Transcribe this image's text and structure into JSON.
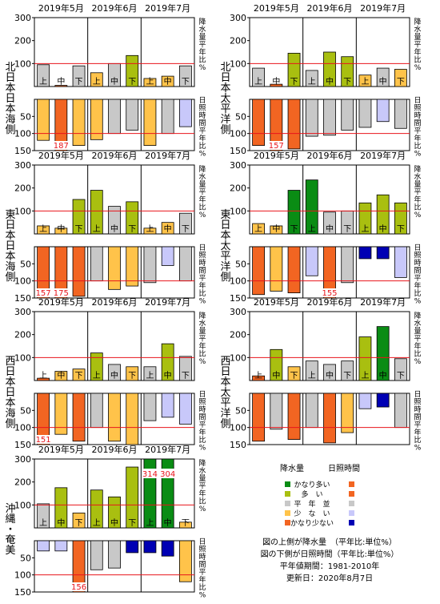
{
  "legend": {
    "precip_title": "降水量",
    "sun_title": "日照時間",
    "categories": [
      {
        "label": "かなり多い",
        "precip_color": "#0a8c14",
        "sun_color": "#f26522"
      },
      {
        "label": "多　い",
        "precip_color": "#a9bf10",
        "sun_color": "#f26522"
      },
      {
        "label": "平　年　並",
        "precip_color": "#c8c8c8",
        "sun_color": "#c8c8c8"
      },
      {
        "label": "少　な　い",
        "precip_color": "#ffc34a",
        "sun_color": "#c8c8fa"
      },
      {
        "label": "かなり少ない",
        "precip_color": "#f26522",
        "sun_color": "#0000b4"
      }
    ]
  },
  "notes": {
    "line1": "図の上側が降水量　（平年比:単位%）",
    "line2": "図の下側が日照時間（平年比:単位%）",
    "line3": "平年値期間：1981-2010年",
    "line4": "更新日：2020年8月7日"
  },
  "chart_data": [
    {
      "type": "bar",
      "region": "北日本日本海側",
      "months": [
        "2019年5月",
        "2019年6月",
        "2019年7月"
      ],
      "categories": [
        "上",
        "中",
        "下",
        "上",
        "中",
        "下",
        "上",
        "中",
        "下"
      ],
      "precip_ylabel": "降水量平年比%",
      "sun_ylabel": "日照時間平年比%",
      "precip_yticks": [
        100,
        200,
        300
      ],
      "sun_yticks": [
        50,
        100,
        150
      ],
      "precip_ylim": [
        0,
        300
      ],
      "sun_ylim": [
        0,
        150
      ],
      "precipitation": {
        "values": [
          95,
          5,
          90,
          60,
          100,
          135,
          35,
          45,
          90
        ],
        "colors": [
          "#c8c8c8",
          "#f26522",
          "#c8c8c8",
          "#ffc34a",
          "#c8c8c8",
          "#a9bf10",
          "#ffc34a",
          "#ffc34a",
          "#c8c8c8"
        ]
      },
      "sunshine": {
        "values": [
          120,
          187,
          135,
          118,
          100,
          90,
          135,
          100,
          80
        ],
        "colors": [
          "#ffc34a",
          "#f26522",
          "#ffc34a",
          "#ffc34a",
          "#c8c8c8",
          "#c8c8c8",
          "#ffc34a",
          "#c8c8c8",
          "#c8c8fa"
        ],
        "labels": [
          "",
          "187",
          "",
          "",
          "",
          "",
          "",
          "",
          ""
        ]
      }
    },
    {
      "type": "bar",
      "region": "北日本太平洋側",
      "months": [
        "2019年5月",
        "2019年6月",
        "2019年7月"
      ],
      "categories": [
        "上",
        "中",
        "下",
        "上",
        "中",
        "下",
        "上",
        "中",
        "下"
      ],
      "precip_ylabel": "降水量平年比%",
      "sun_ylabel": "日照時間平年比%",
      "precip_yticks": [
        100,
        200,
        300
      ],
      "sun_yticks": [
        50,
        100,
        150
      ],
      "precip_ylim": [
        0,
        300
      ],
      "sun_ylim": [
        0,
        150
      ],
      "precipitation": {
        "values": [
          80,
          10,
          145,
          70,
          150,
          130,
          50,
          80,
          75
        ],
        "colors": [
          "#c8c8c8",
          "#f26522",
          "#a9bf10",
          "#c8c8c8",
          "#a9bf10",
          "#a9bf10",
          "#ffc34a",
          "#c8c8c8",
          "#ffc34a"
        ]
      },
      "sunshine": {
        "values": [
          135,
          157,
          145,
          108,
          105,
          90,
          82,
          65,
          85
        ],
        "colors": [
          "#f26522",
          "#f26522",
          "#f26522",
          "#c8c8c8",
          "#c8c8c8",
          "#c8c8c8",
          "#c8c8c8",
          "#c8c8fa",
          "#c8c8c8"
        ],
        "labels": [
          "",
          "157",
          "",
          "",
          "",
          "",
          "",
          "",
          ""
        ]
      }
    },
    {
      "type": "bar",
      "region": "東日本日本海側",
      "months": [
        "2019年5月",
        "2019年6月",
        "2019年7月"
      ],
      "categories": [
        "上",
        "中",
        "下",
        "上",
        "中",
        "下",
        "上",
        "中",
        "下"
      ],
      "precip_ylabel": "降水量平年比%",
      "sun_ylabel": "日照時間平年比%",
      "precip_yticks": [
        100,
        200,
        300
      ],
      "sun_yticks": [
        50,
        100,
        150
      ],
      "precip_ylim": [
        0,
        300
      ],
      "sun_ylim": [
        0,
        150
      ],
      "precipitation": {
        "values": [
          35,
          25,
          150,
          190,
          120,
          140,
          25,
          50,
          90
        ],
        "colors": [
          "#ffc34a",
          "#ffc34a",
          "#a9bf10",
          "#a9bf10",
          "#c8c8c8",
          "#a9bf10",
          "#ffc34a",
          "#ffc34a",
          "#c8c8c8"
        ]
      },
      "sunshine": {
        "values": [
          157,
          175,
          145,
          100,
          125,
          115,
          105,
          55,
          100
        ],
        "colors": [
          "#f26522",
          "#f26522",
          "#f26522",
          "#c8c8c8",
          "#ffc34a",
          "#ffc34a",
          "#c8c8c8",
          "#c8c8fa",
          "#c8c8c8"
        ],
        "labels": [
          "157",
          "175",
          "",
          "",
          "",
          "",
          "",
          "",
          ""
        ]
      }
    },
    {
      "type": "bar",
      "region": "東日本太平洋側",
      "months": [
        "2019年5月",
        "2019年6月",
        "2019年7月"
      ],
      "categories": [
        "上",
        "中",
        "下",
        "上",
        "中",
        "下",
        "上",
        "中",
        "下"
      ],
      "precip_ylabel": "降水量平年比%",
      "sun_ylabel": "日照時間平年比%",
      "precip_yticks": [
        100,
        200,
        300
      ],
      "sun_yticks": [
        50,
        100,
        150
      ],
      "precip_ylim": [
        0,
        300
      ],
      "sun_ylim": [
        0,
        150
      ],
      "precipitation": {
        "values": [
          45,
          35,
          190,
          235,
          95,
          100,
          135,
          170,
          135
        ],
        "colors": [
          "#ffc34a",
          "#ffc34a",
          "#0a8c14",
          "#0a8c14",
          "#c8c8c8",
          "#c8c8c8",
          "#a9bf10",
          "#a9bf10",
          "#a9bf10"
        ]
      },
      "sunshine": {
        "values": [
          140,
          130,
          135,
          85,
          155,
          105,
          35,
          35,
          90
        ],
        "colors": [
          "#f26522",
          "#ffc34a",
          "#f26522",
          "#c8c8fa",
          "#f26522",
          "#c8c8c8",
          "#0000b4",
          "#0000b4",
          "#c8c8fa"
        ],
        "labels": [
          "",
          "",
          "",
          "",
          "155",
          "",
          "",
          "",
          ""
        ]
      }
    },
    {
      "type": "bar",
      "region": "西日本日本海側",
      "months": [
        "2019年5月",
        "2019年6月",
        "2019年7月"
      ],
      "categories": [
        "上",
        "中",
        "下",
        "上",
        "中",
        "下",
        "上",
        "中",
        "下"
      ],
      "precip_ylabel": "降水量平年比%",
      "sun_ylabel": "日照時間平年比%",
      "precip_yticks": [
        100,
        200,
        300
      ],
      "sun_yticks": [
        50,
        100,
        150
      ],
      "precip_ylim": [
        0,
        300
      ],
      "sun_ylim": [
        0,
        150
      ],
      "precipitation": {
        "values": [
          10,
          40,
          50,
          120,
          70,
          60,
          60,
          160,
          105
        ],
        "colors": [
          "#f26522",
          "#ffc34a",
          "#ffc34a",
          "#a9bf10",
          "#c8c8c8",
          "#ffc34a",
          "#c8c8c8",
          "#a9bf10",
          "#c8c8c8"
        ]
      },
      "sunshine": {
        "values": [
          151,
          120,
          140,
          100,
          140,
          150,
          80,
          70,
          90
        ],
        "colors": [
          "#f26522",
          "#ffc34a",
          "#f26522",
          "#c8c8c8",
          "#ffc34a",
          "#ffc34a",
          "#c8c8c8",
          "#c8c8fa",
          "#c8c8fa"
        ],
        "labels": [
          "151",
          "",
          "",
          "",
          "",
          "",
          "",
          "",
          ""
        ]
      }
    },
    {
      "type": "bar",
      "region": "西日本太平洋側",
      "months": [
        "2019年5月",
        "2019年6月",
        "2019年7月"
      ],
      "categories": [
        "上",
        "中",
        "下",
        "上",
        "中",
        "下",
        "上",
        "中",
        "下"
      ],
      "precip_ylabel": "降水量平年比%",
      "sun_ylabel": "日照時間平年比%",
      "precip_yticks": [
        100,
        200,
        300
      ],
      "sun_yticks": [
        50,
        100,
        150
      ],
      "precip_ylim": [
        0,
        300
      ],
      "sun_ylim": [
        0,
        150
      ],
      "precipitation": {
        "values": [
          20,
          135,
          60,
          85,
          70,
          85,
          190,
          235,
          95
        ],
        "colors": [
          "#f26522",
          "#a9bf10",
          "#ffc34a",
          "#c8c8c8",
          "#c8c8c8",
          "#c8c8c8",
          "#a9bf10",
          "#0a8c14",
          "#c8c8c8"
        ]
      },
      "sunshine": {
        "values": [
          140,
          105,
          135,
          100,
          145,
          115,
          45,
          40,
          100
        ],
        "colors": [
          "#f26522",
          "#c8c8c8",
          "#f26522",
          "#c8c8c8",
          "#f26522",
          "#ffc34a",
          "#c8c8fa",
          "#0000b4",
          "#c8c8c8"
        ],
        "labels": [
          "",
          "",
          "",
          "",
          "",
          "",
          "",
          "",
          ""
        ]
      }
    },
    {
      "type": "bar",
      "region": "沖縄・奄美",
      "months": [
        "2019年5月",
        "2019年6月",
        "2019年7月"
      ],
      "categories": [
        "上",
        "中",
        "下",
        "上",
        "中",
        "下",
        "上",
        "中",
        "下"
      ],
      "precip_ylabel": "降水量平年比%",
      "sun_ylabel": "日照時間平年比%",
      "precip_yticks": [
        100,
        200,
        300
      ],
      "sun_yticks": [
        50,
        100,
        150
      ],
      "precip_ylim": [
        0,
        300
      ],
      "sun_ylim": [
        0,
        150
      ],
      "precipitation": {
        "values": [
          105,
          175,
          65,
          165,
          135,
          265,
          314,
          304,
          25
        ],
        "colors": [
          "#c8c8c8",
          "#a9bf10",
          "#ffc34a",
          "#a9bf10",
          "#a9bf10",
          "#a9bf10",
          "#0a8c14",
          "#0a8c14",
          "#ffc34a"
        ],
        "labels": [
          "",
          "",
          "",
          "",
          "",
          "",
          "314",
          "304",
          ""
        ]
      },
      "sunshine": {
        "values": [
          30,
          30,
          156,
          85,
          80,
          35,
          35,
          45,
          120
        ],
        "colors": [
          "#c8c8fa",
          "#c8c8fa",
          "#f26522",
          "#c8c8c8",
          "#c8c8c8",
          "#0000b4",
          "#0000b4",
          "#0000b4",
          "#ffc34a"
        ],
        "labels": [
          "",
          "",
          "156",
          "",
          "",
          "",
          "",
          "",
          ""
        ]
      }
    }
  ]
}
